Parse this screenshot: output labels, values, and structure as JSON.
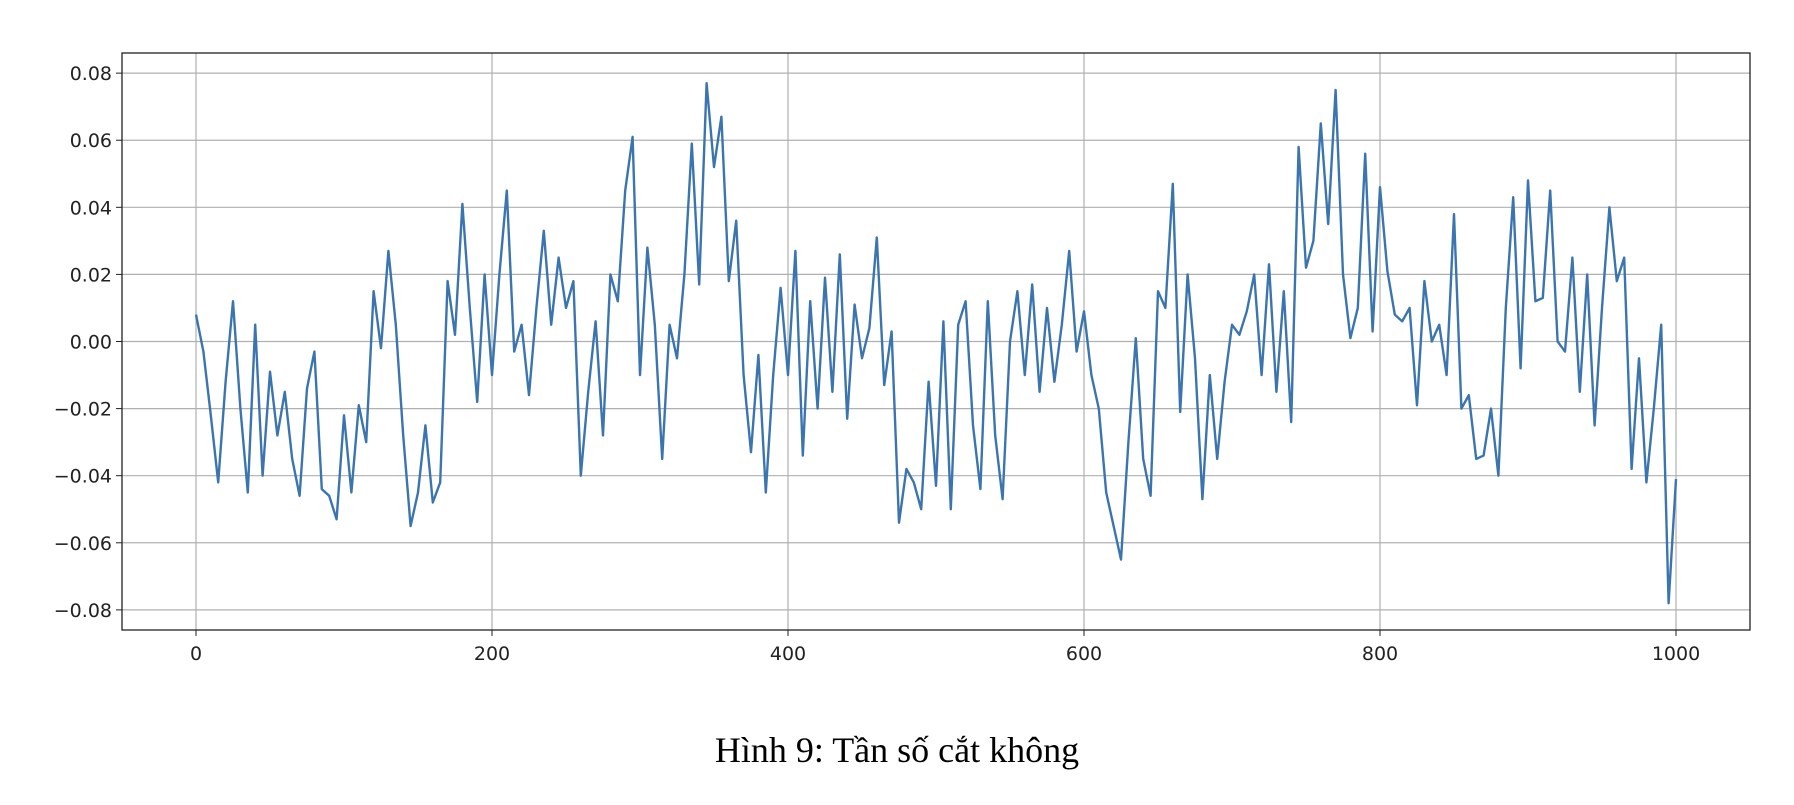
{
  "chart_data": {
    "type": "line",
    "caption": "Hình 9: Tần số cắt không",
    "x": [
      0,
      5,
      10,
      15,
      20,
      25,
      30,
      35,
      40,
      45,
      50,
      55,
      60,
      65,
      70,
      75,
      80,
      85,
      90,
      95,
      100,
      105,
      110,
      115,
      120,
      125,
      130,
      135,
      140,
      145,
      150,
      155,
      160,
      165,
      170,
      175,
      180,
      185,
      190,
      195,
      200,
      205,
      210,
      215,
      220,
      225,
      230,
      235,
      240,
      245,
      250,
      255,
      260,
      265,
      270,
      275,
      280,
      285,
      290,
      295,
      300,
      305,
      310,
      315,
      320,
      325,
      330,
      335,
      340,
      345,
      350,
      355,
      360,
      365,
      370,
      375,
      380,
      385,
      390,
      395,
      400,
      405,
      410,
      415,
      420,
      425,
      430,
      435,
      440,
      445,
      450,
      455,
      460,
      465,
      470,
      475,
      480,
      485,
      490,
      495,
      500,
      505,
      510,
      515,
      520,
      525,
      530,
      535,
      540,
      545,
      550,
      555,
      560,
      565,
      570,
      575,
      580,
      585,
      590,
      595,
      600,
      605,
      610,
      615,
      620,
      625,
      630,
      635,
      640,
      645,
      650,
      655,
      660,
      665,
      670,
      675,
      680,
      685,
      690,
      695,
      700,
      705,
      710,
      715,
      720,
      725,
      730,
      735,
      740,
      745,
      750,
      755,
      760,
      765,
      770,
      775,
      780,
      785,
      790,
      795,
      800,
      805,
      810,
      815,
      820,
      825,
      830,
      835,
      840,
      845,
      850,
      855,
      860,
      865,
      870,
      875,
      880,
      885,
      890,
      895,
      900,
      905,
      910,
      915,
      920,
      925,
      930,
      935,
      940,
      945,
      950,
      955,
      960,
      965,
      970,
      975,
      980,
      985,
      990,
      995,
      1000
    ],
    "series": [
      {
        "color": "#3b75af",
        "values": [
          0.008,
          -0.003,
          -0.022,
          -0.042,
          -0.012,
          0.012,
          -0.02,
          -0.045,
          0.005,
          -0.04,
          -0.009,
          -0.028,
          -0.015,
          -0.035,
          -0.046,
          -0.014,
          -0.003,
          -0.044,
          -0.046,
          -0.053,
          -0.022,
          -0.045,
          -0.019,
          -0.03,
          0.015,
          -0.002,
          0.027,
          0.005,
          -0.028,
          -0.055,
          -0.045,
          -0.025,
          -0.048,
          -0.042,
          0.018,
          0.002,
          0.041,
          0.01,
          -0.018,
          0.02,
          -0.01,
          0.02,
          0.045,
          -0.003,
          0.005,
          -0.016,
          0.01,
          0.033,
          0.005,
          0.025,
          0.01,
          0.018,
          -0.04,
          -0.015,
          0.006,
          -0.028,
          0.02,
          0.012,
          0.045,
          0.061,
          -0.01,
          0.028,
          0.005,
          -0.035,
          0.005,
          -0.005,
          0.02,
          0.059,
          0.017,
          0.077,
          0.052,
          0.067,
          0.018,
          0.036,
          -0.01,
          -0.033,
          -0.004,
          -0.045,
          -0.01,
          0.016,
          -0.01,
          0.027,
          -0.034,
          0.012,
          -0.02,
          0.019,
          -0.015,
          0.026,
          -0.023,
          0.011,
          -0.005,
          0.004,
          0.031,
          -0.013,
          0.003,
          -0.054,
          -0.038,
          -0.042,
          -0.05,
          -0.012,
          -0.043,
          0.006,
          -0.05,
          0.005,
          0.012,
          -0.025,
          -0.044,
          0.012,
          -0.028,
          -0.047,
          0.0,
          0.015,
          -0.01,
          0.017,
          -0.015,
          0.01,
          -0.012,
          0.005,
          0.027,
          -0.003,
          0.009,
          -0.01,
          -0.02,
          -0.045,
          -0.055,
          -0.065,
          -0.03,
          0.001,
          -0.035,
          -0.046,
          0.015,
          0.01,
          0.047,
          -0.021,
          0.02,
          -0.005,
          -0.047,
          -0.01,
          -0.035,
          -0.012,
          0.005,
          0.002,
          0.009,
          0.02,
          -0.01,
          0.023,
          -0.015,
          0.015,
          -0.024,
          0.058,
          0.022,
          0.03,
          0.065,
          0.035,
          0.075,
          0.02,
          0.001,
          0.01,
          0.056,
          0.003,
          0.046,
          0.021,
          0.008,
          0.006,
          0.01,
          -0.019,
          0.018,
          0.0,
          0.005,
          -0.01,
          0.038,
          -0.02,
          -0.016,
          -0.035,
          -0.034,
          -0.02,
          -0.04,
          0.01,
          0.043,
          -0.008,
          0.048,
          0.012,
          0.013,
          0.045,
          0.0,
          -0.003,
          0.025,
          -0.015,
          0.02,
          -0.025,
          0.01,
          0.04,
          0.018,
          0.025,
          -0.038,
          -0.005,
          -0.042,
          -0.02,
          0.005,
          -0.078,
          -0.041
        ]
      }
    ],
    "xlim": [
      -50,
      1050
    ],
    "ylim": [
      -0.086,
      0.086
    ],
    "xticks": [
      0,
      200,
      400,
      600,
      800,
      1000
    ],
    "yticks": [
      {
        "value": -0.08,
        "label": "−0.08"
      },
      {
        "value": -0.06,
        "label": "−0.06"
      },
      {
        "value": -0.04,
        "label": "−0.04"
      },
      {
        "value": -0.02,
        "label": "−0.02"
      },
      {
        "value": 0,
        "label": "0.00"
      },
      0.02,
      0.04,
      0.06,
      0.08
    ],
    "grid": true
  }
}
